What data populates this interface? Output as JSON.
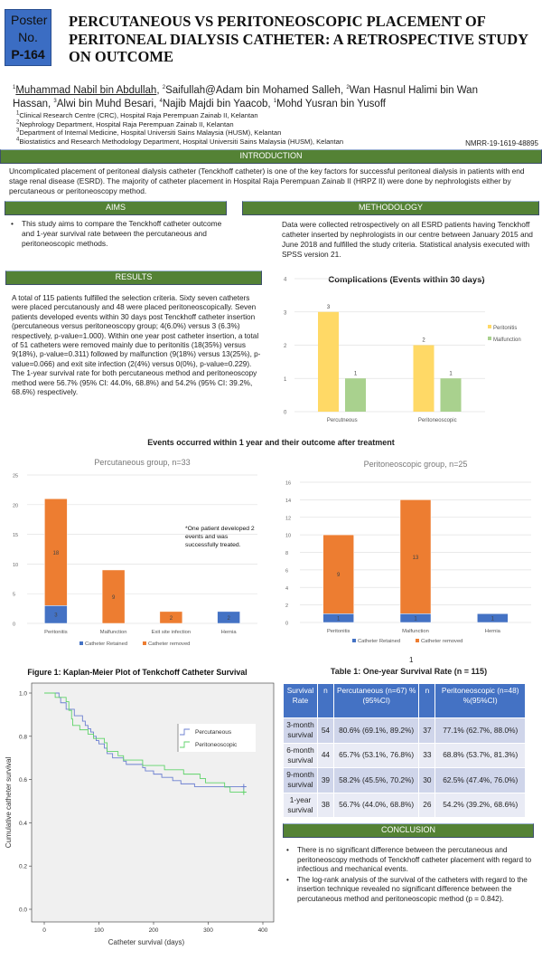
{
  "header": {
    "poster_label": "Poster No.",
    "poster_number": "P-164",
    "title": "PERCUTANEOUS VS PERITONEOSCOPIC PLACEMENT OF PERITONEAL DIALYSIS CATHETER: A RETROSPECTIVE STUDY ON OUTCOME",
    "authors": [
      {
        "sup": "1",
        "name": "Muhammad Nabil bin Abdullah"
      },
      {
        "sup": "2",
        "name": "Saifullah@Adam bin Mohamed Salleh"
      },
      {
        "sup": "2",
        "name": "Wan Hasnul Halimi bin Wan Hassan"
      },
      {
        "sup": "3",
        "name": "Alwi bin Muhd Besari"
      },
      {
        "sup": "4",
        "name": "Najib Majdi bin Yaacob"
      },
      {
        "sup": "1",
        "name": "Mohd Yusran bin Yusoff"
      }
    ],
    "affiliations": [
      {
        "sup": "1",
        "text": "Clinical Research Centre (CRC), Hospital Raja Perempuan Zainab II, Kelantan"
      },
      {
        "sup": "2",
        "text": "Nephrology Department, Hospital Raja Perempuan Zainab II, Kelantan"
      },
      {
        "sup": "3",
        "text": "Department of Internal Medicine, Hospital Universiti Sains Malaysia (HUSM), Kelantan"
      },
      {
        "sup": "4",
        "text": "Biostatistics and Research Methodology Department, Hospital Universiti Sains Malaysia (HUSM), Kelantan"
      }
    ],
    "nmrr": "NMRR-19-1619-48895"
  },
  "colors": {
    "section_bar": "#548235",
    "poster_box": "#3b6dc3",
    "peritonitis": "#ffd966",
    "malfunction": "#a9d18e",
    "retained": "#4472c4",
    "removed": "#ed7d31",
    "km_perc": "#6b7fd0",
    "km_perito": "#5fd36a"
  },
  "introduction": {
    "heading": "INTRODUCTION",
    "text": "Uncomplicated placement of peritoneal dialysis catheter (Tenckhoff catheter) is one of the key factors for successful peritoneal dialysis in patients with end stage renal disease (ESRD). The majority of catheter placement in Hospital Raja Perempuan Zainab II (HRPZ II) were done by nephrologists either by percutaneous or peritoneoscopy method."
  },
  "aims": {
    "heading": "AIMS",
    "items": [
      "This study aims to compare the Tenckhoff catheter outcome and 1-year survival rate between the percutaneous and peritoneoscopic methods."
    ]
  },
  "methodology": {
    "heading": "METHODOLOGY",
    "text": "Data were collected retrospectively on all ESRD patients having Tenckhoff catheter inserted by nephrologists in our centre between January 2015 and June 2018 and fulfilled the study criteria. Statistical analysis executed with SPSS version 21."
  },
  "results": {
    "heading": "RESULTS",
    "text": "A total of 115 patients fulfilled the selection criteria. Sixty seven catheters were placed percutanously and 48 were placed peritoneoscopically. Seven patients developed events within 30 days post Tenckhoff catheter insertion (percutaneous versus peritoneoscopy group; 4(6.0%) versus 3 (6.3%) respectively, p-value=1.000). Within one year post catheter insertion, a total of 51 catheters were removed mainly due to peritonitis (18(35%) versus 9(18%), p-value=0.311) followed by malfunction (9(18%) versus 13(25%), p-value=0.066) and exit site infection (2(4%) versus 0(0%), p-value=0.229). The 1-year survival rate for both percutaneous method and peritoneoscopy method were 56.7% (95% CI: 44.0%, 68.8%) and 54.2% (95% CI: 39.2%, 68.6%) respectively."
  },
  "events_heading": "Events occurred within 1 year and their outcome after treatment",
  "page_marker": "1",
  "chart_data": [
    {
      "id": "complications",
      "type": "bar",
      "title": "Complications (Events within 30 days)",
      "categories": [
        "Percutneous",
        "Peritoneoscopic"
      ],
      "series": [
        {
          "name": "Peritonitis",
          "values": [
            3,
            2
          ]
        },
        {
          "name": "Malfunction",
          "values": [
            1,
            1
          ]
        }
      ],
      "ylim": [
        0,
        4
      ],
      "yticks": [
        0,
        1,
        2,
        3,
        4
      ],
      "legend": "right",
      "grid": true
    },
    {
      "id": "percutaneous",
      "type": "bar",
      "stacked": true,
      "title": "Percutaneous group, n=33",
      "categories": [
        "Peritonitis",
        "Malfunction",
        "Exit site infection",
        "Hernia"
      ],
      "series": [
        {
          "name": "Catheter Retained",
          "values": [
            3,
            0,
            0,
            2
          ]
        },
        {
          "name": "Catheter removed",
          "values": [
            18,
            9,
            2,
            0
          ]
        }
      ],
      "ylim": [
        0,
        25
      ],
      "yticks": [
        0,
        5,
        10,
        15,
        20,
        25
      ],
      "legend": "bottom",
      "grid": true,
      "annotation": "*One patient developed 2 events and was successfully treated."
    },
    {
      "id": "peritoneoscopic",
      "type": "bar",
      "stacked": true,
      "title": "Peritoneoscopic group, n=25",
      "categories": [
        "Peritonitis",
        "Malfunction",
        "Hernia"
      ],
      "series": [
        {
          "name": "Catheter Retained",
          "values": [
            1,
            1,
            1
          ]
        },
        {
          "name": "Catheter removed",
          "values": [
            9,
            13,
            0
          ]
        }
      ],
      "ylim": [
        0,
        16
      ],
      "yticks": [
        0,
        2,
        4,
        6,
        8,
        10,
        12,
        14,
        16
      ],
      "legend": "bottom",
      "grid": true
    },
    {
      "id": "km",
      "type": "line",
      "title": "Figure 1: Kaplan-Meier Plot of Tenkchoff Catheter Survival",
      "xlabel": "Catheter survival (days)",
      "ylabel": "Cumulative catheter survival",
      "xlim": [
        0,
        400
      ],
      "xticks": [
        0,
        100,
        200,
        300,
        400
      ],
      "ylim": [
        0,
        1
      ],
      "yticks": [
        "0.0",
        "0.2",
        "0.4",
        "0.6",
        "0.8",
        "1.0"
      ],
      "legend": "upper-right",
      "step": true,
      "series": [
        {
          "name": "Percutaneous",
          "x": [
            0,
            27,
            30,
            40,
            55,
            70,
            75,
            80,
            85,
            90,
            95,
            100,
            110,
            115,
            125,
            145,
            150,
            180,
            185,
            200,
            215,
            235,
            250,
            275,
            365
          ],
          "y": [
            1,
            0.98,
            0.955,
            0.925,
            0.895,
            0.87,
            0.85,
            0.835,
            0.82,
            0.8,
            0.78,
            0.765,
            0.745,
            0.72,
            0.7,
            0.685,
            0.67,
            0.655,
            0.64,
            0.625,
            0.61,
            0.595,
            0.58,
            0.567,
            0.567
          ]
        },
        {
          "name": "Peritoneoscopic",
          "x": [
            0,
            20,
            40,
            45,
            50,
            52,
            65,
            80,
            90,
            110,
            115,
            135,
            145,
            180,
            220,
            255,
            285,
            295,
            330,
            340,
            365
          ],
          "y": [
            1,
            0.98,
            0.96,
            0.92,
            0.88,
            0.85,
            0.83,
            0.81,
            0.79,
            0.77,
            0.73,
            0.71,
            0.69,
            0.665,
            0.645,
            0.625,
            0.605,
            0.585,
            0.565,
            0.542,
            0.542
          ]
        }
      ]
    }
  ],
  "table": {
    "caption": "Table 1: One-year Survival Rate (n = 115)",
    "headers": [
      "Survival Rate",
      "n",
      "Percutaneous (n=67) %(95%CI)",
      "n",
      "Peritoneoscopic (n=48) %(95%CI)"
    ],
    "rows": [
      [
        "3-month survival",
        "54",
        "80.6% (69.1%, 89.2%)",
        "37",
        "77.1% (62.7%, 88.0%)"
      ],
      [
        "6-month survival",
        "44",
        "65.7% (53.1%, 76.8%)",
        "33",
        "68.8% (53.7%, 81.3%)"
      ],
      [
        "9-month survival",
        "39",
        "58.2% (45.5%, 70.2%)",
        "30",
        "62.5% (47.4%, 76.0%)"
      ],
      [
        "1-year survival",
        "38",
        "56.7% (44.0%, 68.8%)",
        "26",
        "54.2% (39.2%, 68.6%)"
      ]
    ]
  },
  "conclusion": {
    "heading": "CONCLUSION",
    "items": [
      "There is no significant difference between the percutaneous and peritoneoscopy methods of Tenckhoff catheter placement with regard to infectious and mechanical events.",
      "The log-rank analysis of the survival of the catheters with regard to the insertion technique revealed no significant difference between the percutaneous method and peritoneoscopic method (p = 0.842)."
    ]
  }
}
